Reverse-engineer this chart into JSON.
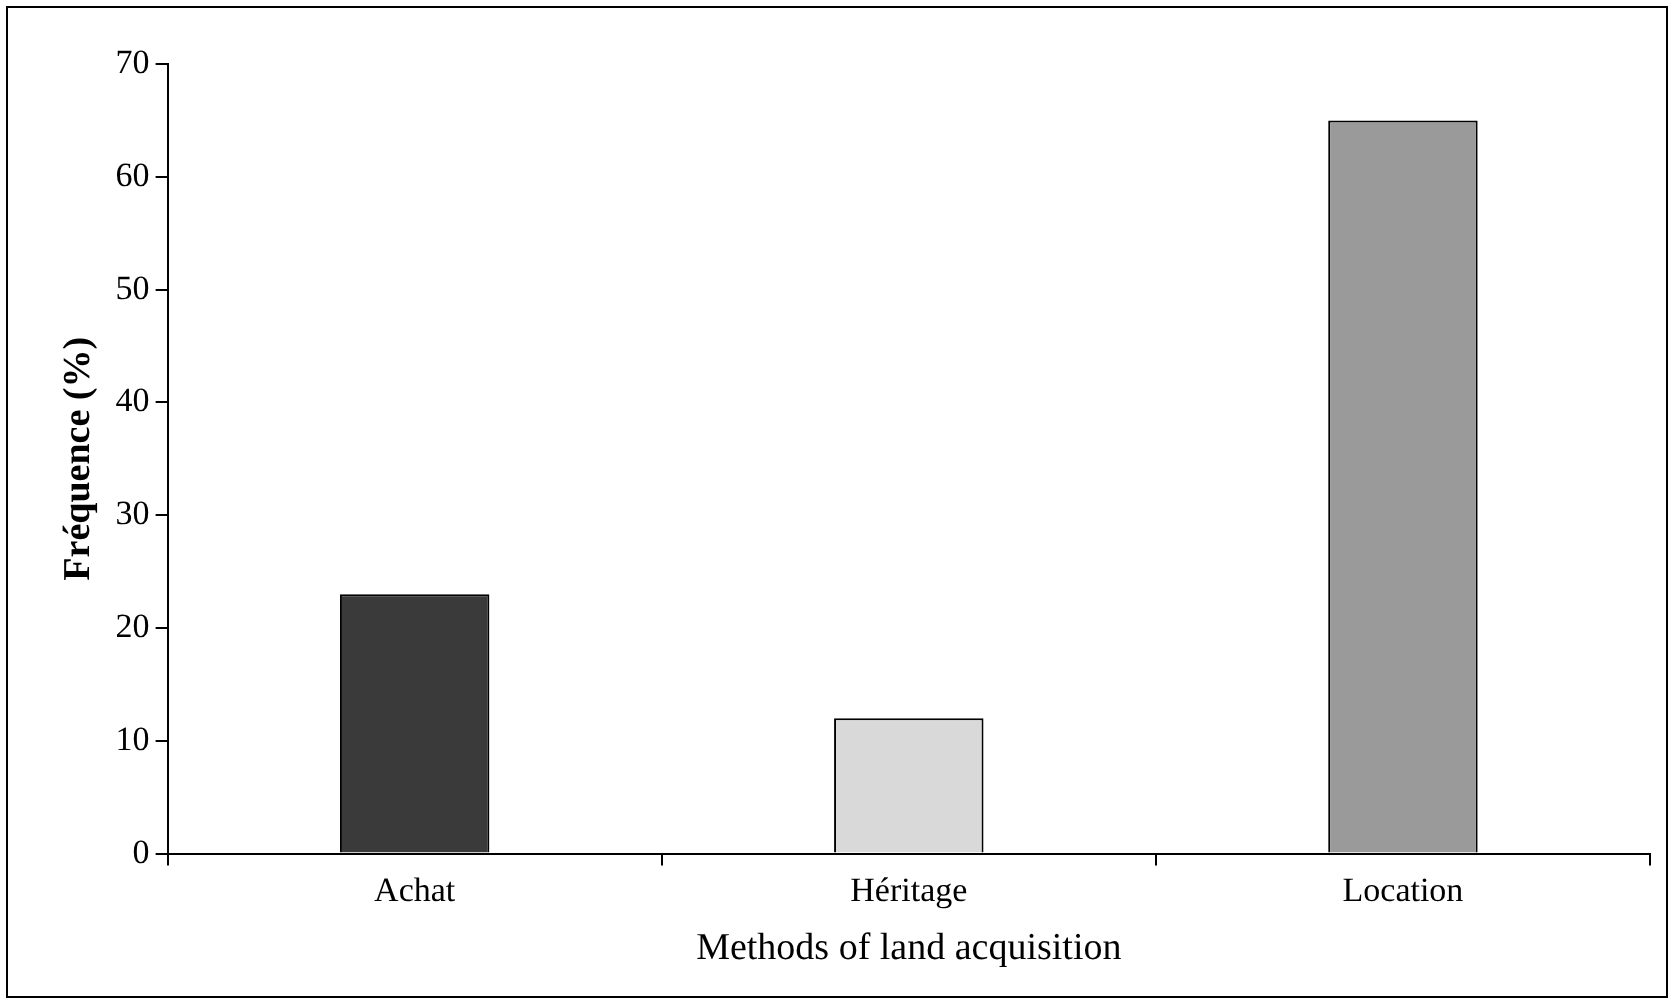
{
  "chart_data": {
    "type": "bar",
    "xlabel": "Methods of land acquisition",
    "ylabel": "Fréquence (%)",
    "categories": [
      "Achat",
      "Héritage",
      "Location"
    ],
    "values": [
      23,
      12,
      65
    ],
    "colors": [
      "#3a3a3a",
      "#d9d9d9",
      "#9a9a9a"
    ],
    "ylim": [
      0,
      70
    ],
    "yticks": [
      0,
      10,
      20,
      30,
      40,
      50,
      60,
      70
    ],
    "grid": false,
    "legend": false
  }
}
